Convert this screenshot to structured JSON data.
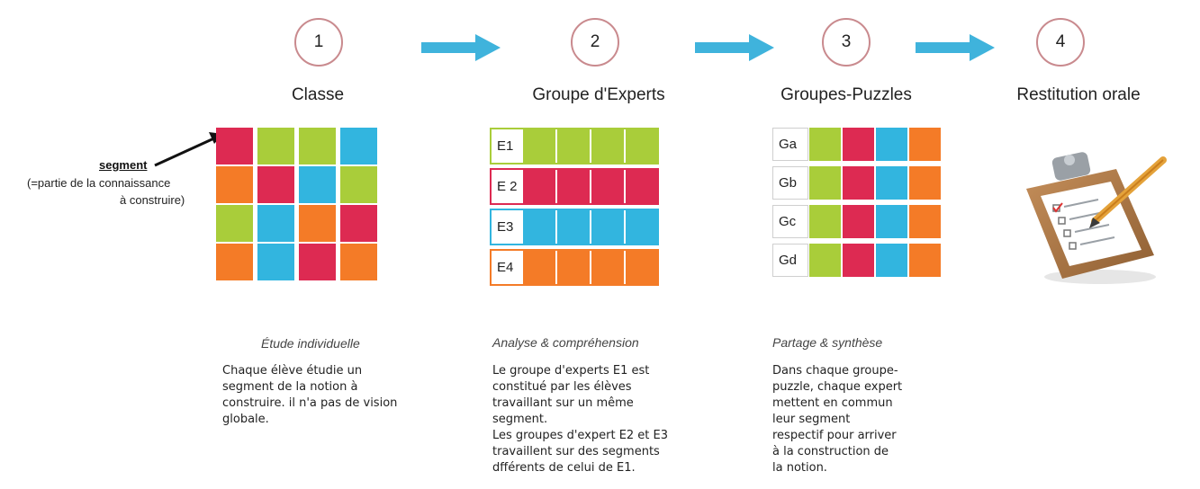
{
  "colors": {
    "green": "#a9cd3a",
    "red": "#dd2a52",
    "blue": "#32b5df",
    "orange": "#f47b27",
    "arrow": "#3fb3dc",
    "circle_border": "#c98a8e"
  },
  "steps": [
    {
      "number": "1",
      "title": "Classe"
    },
    {
      "number": "2",
      "title": "Groupe d'Experts"
    },
    {
      "number": "3",
      "title": "Groupes-Puzzles"
    },
    {
      "number": "4",
      "title": "Restitution orale"
    }
  ],
  "classe": {
    "segment_label": "segment",
    "segment_note_line1": "(=partie de la connaissance",
    "segment_note_line2": "à construire)",
    "grid": [
      [
        "red",
        "green",
        "green",
        "blue"
      ],
      [
        "orange",
        "red",
        "blue",
        "green"
      ],
      [
        "green",
        "blue",
        "orange",
        "red"
      ],
      [
        "orange",
        "blue",
        "red",
        "orange"
      ]
    ],
    "phase": "Étude individuelle",
    "description": "Chaque élève étudie un\nsegment de la notion à\nconstruire. il n'a pas de vision\nglobale."
  },
  "experts": {
    "rows": [
      {
        "label": "E1",
        "color": "green"
      },
      {
        "label": "E 2",
        "color": "red"
      },
      {
        "label": "E3",
        "color": "blue"
      },
      {
        "label": "E4",
        "color": "orange"
      }
    ],
    "phase": "Analyse & compréhension",
    "description": "Le groupe d'experts E1 est\nconstitué par les élèves\ntravaillant sur un même\nsegment.\nLes groupes d'expert E2 et E3\ntravaillent sur des segments\ndfférents de celui de E1."
  },
  "puzzles": {
    "rows": [
      {
        "label": "Ga"
      },
      {
        "label": "Gb"
      },
      {
        "label": "Gc"
      },
      {
        "label": "Gd"
      }
    ],
    "row_colors": [
      "green",
      "red",
      "blue",
      "orange"
    ],
    "phase": "Partage & synthèse",
    "description": "Dans chaque groupe-\npuzzle, chaque expert\nmettent en commun\nleur segment\nrespectif pour arriver\nà la construction de\nla notion."
  },
  "icon": "clipboard-checklist-icon"
}
